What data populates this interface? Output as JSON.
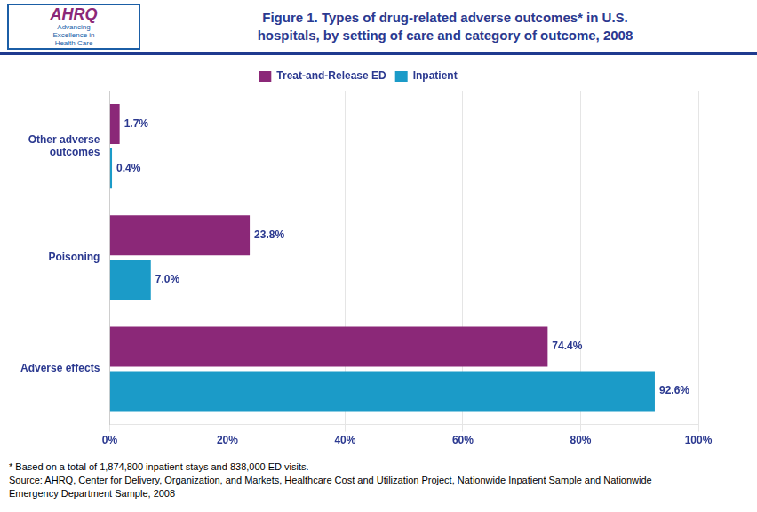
{
  "chart_data": {
    "type": "bar",
    "orientation": "horizontal",
    "title": [
      "Figure 1.  Types of drug-related adverse outcomes* in U.S.",
      "hospitals, by setting of care and category of outcome, 2008"
    ],
    "categories": [
      "Adverse effects",
      "Poisoning",
      "Other adverse\noutcomes"
    ],
    "series": [
      {
        "name": "Treat-and-Release ED",
        "color": "#8B2878",
        "values": [
          74.4,
          23.8,
          1.7
        ],
        "value_labels": [
          "74.4%",
          "23.8%",
          "1.7%"
        ]
      },
      {
        "name": "Inpatient",
        "color": "#1B9BC8",
        "values": [
          92.6,
          7.0,
          0.4
        ],
        "value_labels": [
          "92.6%",
          "7.0%",
          "0.4%"
        ]
      }
    ],
    "xlim": [
      0,
      100
    ],
    "xticks": [
      {
        "value": 0,
        "label": "0%"
      },
      {
        "value": 20,
        "label": "20%"
      },
      {
        "value": 40,
        "label": "40%"
      },
      {
        "value": 60,
        "label": "60%"
      },
      {
        "value": 80,
        "label": "80%"
      },
      {
        "value": 100,
        "label": "100%"
      }
    ],
    "grid": true,
    "legend": "top",
    "data_labels": true,
    "annotations": [
      "AHRQ",
      "Advancing\nExcellence in\nHealth Care",
      "* Based on a total of 1,874,800 inpatient stays and 838,000 ED visits.",
      "Source: AHRQ, Center for Delivery, Organization, and Markets, Healthcare Cost and Utilization Project, Nationwide Inpatient Sample and Nationwide",
      "Emergency Department Sample, 2008"
    ]
  }
}
